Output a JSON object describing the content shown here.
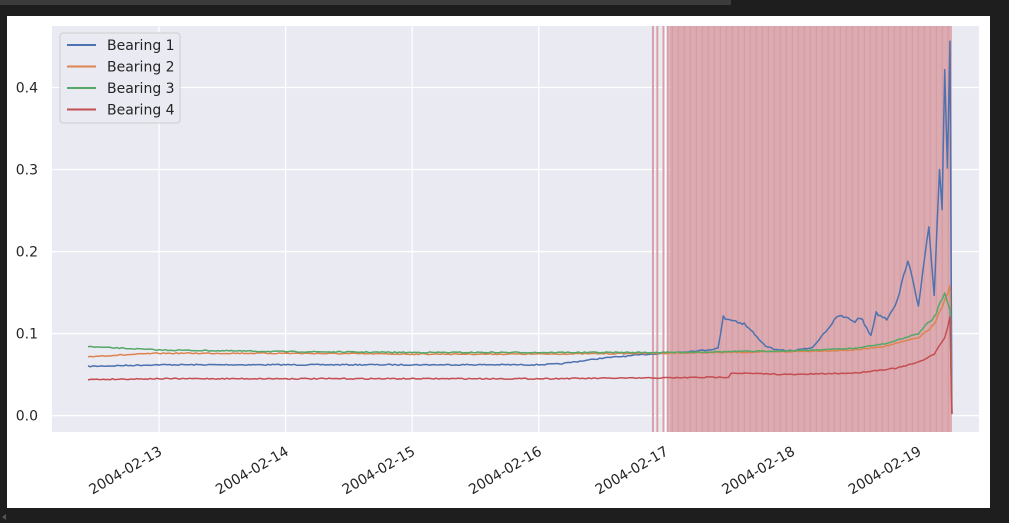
{
  "chart_data": {
    "type": "line",
    "title": "",
    "xlabel": "",
    "ylabel": "",
    "x_range": [
      "2004-02-12T10:32",
      "2004-02-19T06:22"
    ],
    "xlim": [
      "2004-02-12T03:42",
      "2004-02-19T11:30"
    ],
    "ylim": [
      -0.02,
      0.475
    ],
    "x_ticks": [
      "2004-02-13",
      "2004-02-14",
      "2004-02-15",
      "2004-02-16",
      "2004-02-17",
      "2004-02-18",
      "2004-02-19"
    ],
    "y_ticks": [
      0.0,
      0.1,
      0.2,
      0.3,
      0.4
    ],
    "y_tick_labels": [
      "0.0",
      "0.1",
      "0.2",
      "0.3",
      "0.4"
    ],
    "grid": true,
    "legend_position": "top-left",
    "series": [
      {
        "name": "Bearing 1",
        "color": "#4c72b0",
        "x": [
          "2004-02-12T10:32",
          "2004-02-13T00:00",
          "2004-02-14T00:00",
          "2004-02-15T00:00",
          "2004-02-16T00:00",
          "2004-02-16T04:00",
          "2004-02-16T12:00",
          "2004-02-16T21:00",
          "2004-02-17T04:00",
          "2004-02-17T08:00",
          "2004-02-17T10:00",
          "2004-02-17T11:00",
          "2004-02-17T15:00",
          "2004-02-17T19:00",
          "2004-02-17T21:00",
          "2004-02-18T00:00",
          "2004-02-18T04:00",
          "2004-02-18T06:00",
          "2004-02-18T08:00",
          "2004-02-18T09:00",
          "2004-02-18T12:00",
          "2004-02-18T13:00",
          "2004-02-18T15:00",
          "2004-02-18T16:00",
          "2004-02-18T18:00",
          "2004-02-18T20:00",
          "2004-02-18T22:00",
          "2004-02-19T00:00",
          "2004-02-19T02:00",
          "2004-02-19T03:00",
          "2004-02-19T04:00",
          "2004-02-19T04:30",
          "2004-02-19T05:00",
          "2004-02-19T05:30",
          "2004-02-19T06:00",
          "2004-02-19T06:22"
        ],
        "y": [
          0.06,
          0.062,
          0.062,
          0.062,
          0.062,
          0.063,
          0.07,
          0.075,
          0.078,
          0.08,
          0.082,
          0.12,
          0.112,
          0.085,
          0.08,
          0.079,
          0.083,
          0.1,
          0.115,
          0.122,
          0.115,
          0.12,
          0.098,
          0.125,
          0.118,
          0.14,
          0.19,
          0.135,
          0.23,
          0.145,
          0.3,
          0.25,
          0.42,
          0.3,
          0.455,
          0.002
        ]
      },
      {
        "name": "Bearing 2",
        "color": "#dd8452",
        "x": [
          "2004-02-12T10:32",
          "2004-02-13T00:00",
          "2004-02-14T00:00",
          "2004-02-15T00:00",
          "2004-02-16T00:00",
          "2004-02-17T00:00",
          "2004-02-18T00:00",
          "2004-02-18T12:00",
          "2004-02-18T18:00",
          "2004-02-19T00:00",
          "2004-02-19T03:00",
          "2004-02-19T05:00",
          "2004-02-19T06:00",
          "2004-02-19T06:22"
        ],
        "y": [
          0.072,
          0.076,
          0.076,
          0.075,
          0.075,
          0.076,
          0.078,
          0.08,
          0.085,
          0.095,
          0.11,
          0.14,
          0.16,
          0.002
        ]
      },
      {
        "name": "Bearing 3",
        "color": "#55a868",
        "x": [
          "2004-02-12T10:32",
          "2004-02-13T00:00",
          "2004-02-14T00:00",
          "2004-02-15T00:00",
          "2004-02-16T00:00",
          "2004-02-17T00:00",
          "2004-02-18T00:00",
          "2004-02-18T12:00",
          "2004-02-18T18:00",
          "2004-02-19T00:00",
          "2004-02-19T03:00",
          "2004-02-19T05:00",
          "2004-02-19T06:00",
          "2004-02-19T06:22"
        ],
        "y": [
          0.084,
          0.08,
          0.078,
          0.077,
          0.077,
          0.077,
          0.079,
          0.082,
          0.088,
          0.1,
          0.12,
          0.15,
          0.13,
          0.002
        ]
      },
      {
        "name": "Bearing 4",
        "color": "#c44e52",
        "x": [
          "2004-02-12T10:32",
          "2004-02-13T00:00",
          "2004-02-14T00:00",
          "2004-02-15T00:00",
          "2004-02-16T00:00",
          "2004-02-17T00:00",
          "2004-02-17T12:00",
          "2004-02-17T12:30",
          "2004-02-18T00:00",
          "2004-02-18T12:00",
          "2004-02-18T20:00",
          "2004-02-19T00:00",
          "2004-02-19T03:00",
          "2004-02-19T05:00",
          "2004-02-19T06:00",
          "2004-02-19T06:22"
        ],
        "y": [
          0.044,
          0.045,
          0.045,
          0.045,
          0.045,
          0.046,
          0.047,
          0.052,
          0.05,
          0.052,
          0.058,
          0.065,
          0.075,
          0.095,
          0.12,
          0.002
        ]
      }
    ],
    "anomaly_band": {
      "color": "#d9a0a7",
      "scattered_lines": [
        "2004-02-16T21:40",
        "2004-02-16T22:30",
        "2004-02-16T23:40",
        "2004-02-17T00:30"
      ],
      "dense_start": "2004-02-17T00:45",
      "dense_end": "2004-02-19T06:22"
    }
  }
}
